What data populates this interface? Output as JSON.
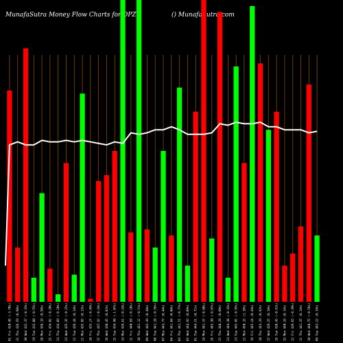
{
  "chart_data": {
    "type": "bar",
    "title": "MunafaSutra  Money Flow  Charts for DPZ",
    "subtitle": "() MunafaSutra.com",
    "ylim": [
      0,
      100
    ],
    "categories": [
      "01 Fri 420.46 (-3.70%)",
      "31 Thu 436.59 (0.98%)",
      "30 Wed 432.37 (-0.33%)",
      "29 Tue 433.80 (-0.55%)",
      "28 Mon 436.19 (0.50%)",
      "25 Fri 434.02 (-0.20%)",
      "24 Thu 434.89 (-0.10%)",
      "23 Wed 435.35 (-0.25%)",
      "22 Tue 436.44 (0.14%)",
      "21 Mon 435.85 (0.13%)",
      "18 Fri 435.27 (-0.49%)",
      "17 Thu 437.42 (-0.24%)",
      "16 Wed 438.45 (0.82%)",
      "15 Tue 434.90 (-1.07%)",
      "14 Mon 439.61 (-0.24%)",
      "11 Fri 440.69 (-0.10%)",
      "10 Thu 441.12 (-0.51%)",
      "09 Wed 443.39 (0.48%)",
      "08 Tue 441.28 (-0.56%)",
      "07 Mon 443.77 (0.44%)",
      "04 Fri 441.84 (0.08%)",
      "03 Thu 441.51 (-0.77%)",
      "02 Wed 444.92 (0.09%)",
      "01 Tue 444.51 (0.71%)",
      "29 Mon 441.37 (-0.88%)",
      "26 Fri 445.30 (-0.67%)",
      "25 Thu 448.29 (0.88%)",
      "24 Wed 444.38 (-0.33%)",
      "23 Tue 445.85 (-0.95%)",
      "22 Mon 450.15 (1.10%)",
      "19 Fri 445.24 (0.44%)",
      "18 Thu 443.29 (0.92%)",
      "17 Wed 439.25 (0.18%)",
      "16 Tue 438.45 (-0.41%)",
      "15 Mon 440.26 (0.14%)",
      "12 Fri 439.65 (-0.39%)",
      "11 Thu 441.37 (0.14%)",
      "10 Wed 440.75 (-0.56%)",
      "09 Tue 443.22 (0.19%)"
    ],
    "series": [
      {
        "colors": [
          "#ff0000",
          "#ff0000",
          "#ff0000",
          "#00ff00",
          "#00ff00",
          "#ff0000",
          "#00ff00",
          "#ff0000",
          "#00ff00",
          "#00ff00",
          "#ff0000",
          "#ff0000",
          "#ff0000",
          "#ff0000",
          "#00ff00",
          "#ff0000",
          "#00ff00",
          "#ff0000",
          "#00ff00",
          "#00ff00",
          "#ff0000",
          "#00ff00",
          "#00ff00",
          "#ff0000",
          "#ff0000",
          "#00ff00",
          "#ff0000",
          "#00ff00",
          "#00ff00",
          "#ff0000",
          "#00ff00",
          "#ff0000",
          "#00ff00",
          "#ff0000",
          "#ff0000",
          "#ff0000",
          "#ff0000",
          "#ff0000",
          "#00ff00"
        ],
        "values": [
          70,
          18,
          84,
          8,
          36,
          11,
          2.5,
          46,
          9,
          69,
          1,
          40,
          42,
          50,
          100,
          23,
          100,
          24,
          18,
          50,
          22,
          71,
          12,
          63,
          100,
          21,
          96,
          8,
          78,
          46,
          98,
          79,
          57,
          63,
          12,
          16,
          25,
          72,
          22
        ]
      }
    ],
    "flow_line": [
      52,
      53,
      52,
      52,
      53.5,
      53,
      53,
      53.5,
      53,
      53.5,
      53,
      52.5,
      52,
      53,
      52.5,
      56,
      55.5,
      56,
      57,
      57,
      58,
      57,
      55.5,
      55.5,
      55.5,
      56,
      59,
      58.5,
      59.5,
      59,
      59,
      59.5,
      58,
      58,
      57,
      57,
      57,
      56,
      56.5
    ]
  }
}
